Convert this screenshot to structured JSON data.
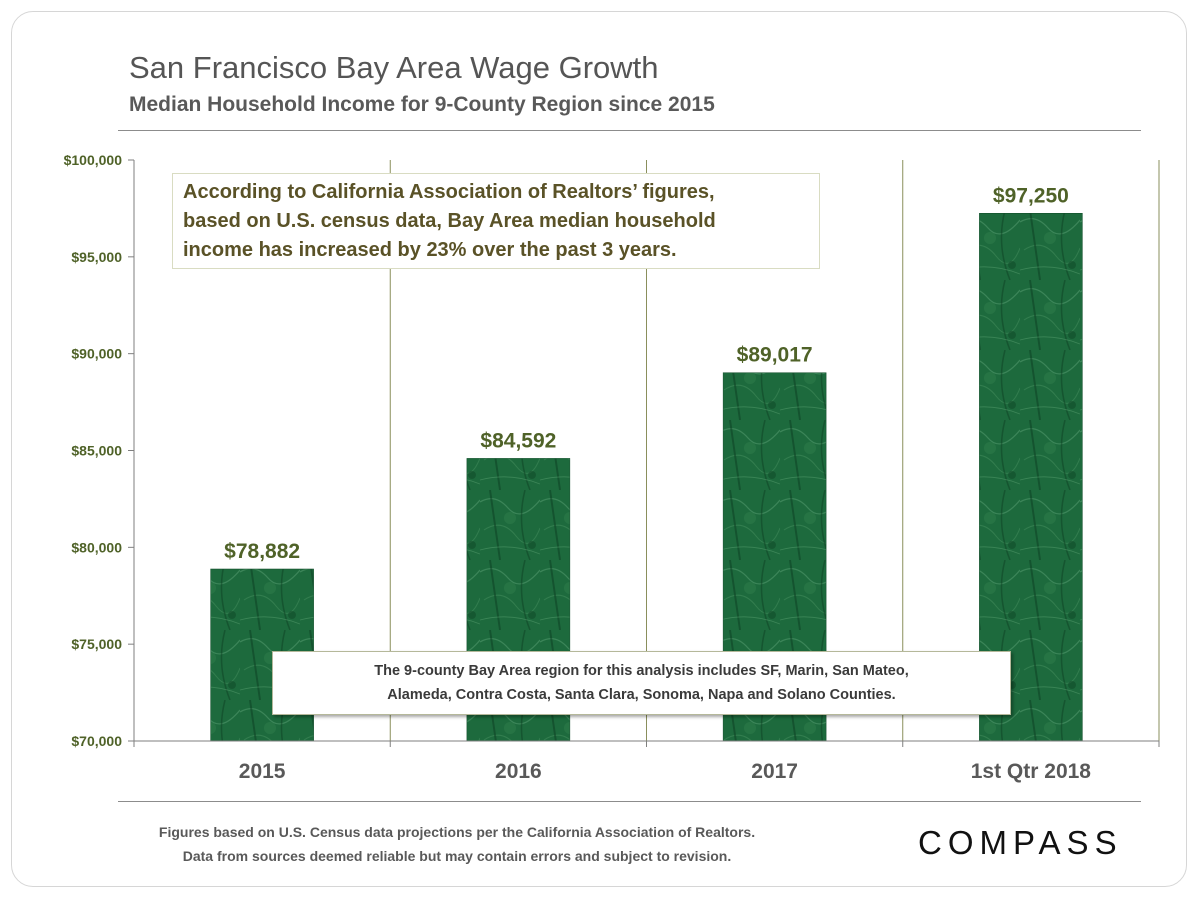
{
  "header": {
    "title": "San Francisco Bay Area Wage Growth",
    "subtitle": "Median Household Income for 9-County Region since 2015"
  },
  "callout": {
    "lines": [
      "According to California Association of Realtors’ figures,",
      "based on U.S. census data, Bay Area median household",
      "income has increased by 23% over the past 3 years."
    ]
  },
  "note": {
    "lines": [
      "The 9-county Bay Area region for this analysis includes SF, Marin, San Mateo,",
      "Alameda,  Contra Costa, Santa Clara, Sonoma, Napa and Solano Counties."
    ]
  },
  "footer": {
    "lines": [
      "Figures based on U.S. Census  data projections per the California Association  of Realtors.",
      "Data from sources  deemed reliable but may contain errors and subject to revision."
    ]
  },
  "logo": {
    "text": "COMPASS"
  },
  "colors": {
    "bar": "#1e6b3e",
    "bar_dark": "#0f4a27",
    "value_label": "#4f6228",
    "axis_label": "#4f6228",
    "gridline": "#8a8f5c"
  },
  "chart_data": {
    "type": "bar",
    "title": "San Francisco Bay Area Wage Growth",
    "subtitle": "Median Household Income for 9-County Region since 2015",
    "categories": [
      "2015",
      "2016",
      "2017",
      "1st Qtr 2018"
    ],
    "values": [
      78882,
      84592,
      89017,
      97250
    ],
    "value_labels": [
      "$78,882",
      "$84,592",
      "$89,017",
      "$97,250"
    ],
    "ylim": [
      70000,
      100000
    ],
    "yticks": [
      70000,
      75000,
      80000,
      85000,
      90000,
      95000,
      100000
    ],
    "ytick_labels": [
      "$70,000",
      "$75,000",
      "$80,000",
      "$85,000",
      "$90,000",
      "$95,000",
      "$100,000"
    ],
    "xlabel": "",
    "ylabel": "",
    "grid": "vertical separators between categories",
    "legend": "none"
  }
}
